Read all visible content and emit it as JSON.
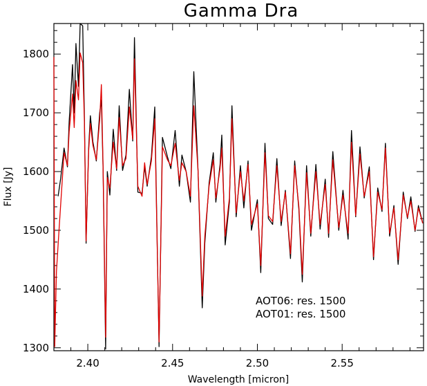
{
  "chart_data": {
    "type": "line",
    "title": "Gamma Dra",
    "xlabel": "Wavelength [micron]",
    "ylabel": "Flux [Jy]",
    "xlim": [
      2.38,
      2.598
    ],
    "ylim": [
      1295,
      1852
    ],
    "xticks": [
      2.4,
      2.45,
      2.5,
      2.55
    ],
    "xtick_labels": [
      "2.40",
      "2.45",
      "2.50",
      "2.55"
    ],
    "yticks": [
      1300,
      1400,
      1500,
      1600,
      1700,
      1800
    ],
    "ytick_labels": [
      "1300",
      "1400",
      "1500",
      "1600",
      "1700",
      "1800"
    ],
    "legend_placement": "lower-right",
    "grid": false,
    "series": [
      {
        "name": "AOT06: res. 1500",
        "color": "#000000",
        "x": [
          2.3825,
          2.384,
          2.386,
          2.388,
          2.389,
          2.391,
          2.392,
          2.393,
          2.3945,
          2.3955,
          2.397,
          2.398,
          2.399,
          2.4005,
          2.4015,
          2.403,
          2.405,
          2.407,
          2.408,
          2.409,
          2.4105,
          2.4115,
          2.413,
          2.415,
          2.417,
          2.4185,
          2.4205,
          2.4225,
          2.4245,
          2.4265,
          2.4275,
          2.4295,
          2.432,
          2.4335,
          2.435,
          2.4375,
          2.4395,
          2.442,
          2.444,
          2.447,
          2.449,
          2.4515,
          2.454,
          2.4555,
          2.458,
          2.4605,
          2.4625,
          2.465,
          2.4675,
          2.469,
          2.4715,
          2.474,
          2.4755,
          2.478,
          2.479,
          2.481,
          2.4835,
          2.485,
          2.4875,
          2.49,
          2.492,
          2.4945,
          2.4965,
          2.5,
          2.502,
          2.5045,
          2.5065,
          2.509,
          2.5115,
          2.514,
          2.5165,
          2.5195,
          2.522,
          2.5245,
          2.5265,
          2.529,
          2.5315,
          2.5345,
          2.537,
          2.54,
          2.542,
          2.5445,
          2.548,
          2.5505,
          2.5535,
          2.5555,
          2.558,
          2.5605,
          2.563,
          2.566,
          2.5685,
          2.571,
          2.5735,
          2.5755,
          2.578,
          2.5805,
          2.583,
          2.586,
          2.5885,
          2.5905,
          2.593,
          2.595,
          2.5975
        ],
        "y": [
          1558,
          1588,
          1640,
          1608,
          1685,
          1782,
          1700,
          1818,
          1745,
          1852,
          1848,
          1690,
          1478,
          1640,
          1695,
          1651,
          1618,
          1700,
          1722,
          1605,
          1298,
          1600,
          1560,
          1672,
          1602,
          1712,
          1602,
          1628,
          1740,
          1652,
          1828,
          1565,
          1563,
          1608,
          1575,
          1625,
          1710,
          1302,
          1658,
          1625,
          1605,
          1670,
          1575,
          1628,
          1600,
          1548,
          1770,
          1602,
          1368,
          1478,
          1580,
          1632,
          1548,
          1612,
          1662,
          1475,
          1548,
          1712,
          1523,
          1610,
          1538,
          1618,
          1500,
          1552,
          1428,
          1648,
          1520,
          1510,
          1622,
          1508,
          1568,
          1452,
          1618,
          1535,
          1412,
          1610,
          1490,
          1612,
          1502,
          1587,
          1488,
          1634,
          1500,
          1568,
          1485,
          1670,
          1523,
          1642,
          1555,
          1608,
          1450,
          1572,
          1532,
          1648,
          1490,
          1542,
          1442,
          1565,
          1520,
          1557,
          1498,
          1542,
          1512
        ]
      },
      {
        "name": "AOT01: res. 1500",
        "color": "#e00000",
        "x": [
          2.38,
          2.3805,
          2.3815,
          2.383,
          2.386,
          2.388,
          2.389,
          2.391,
          2.392,
          2.393,
          2.3945,
          2.3955,
          2.397,
          2.398,
          2.399,
          2.4005,
          2.4015,
          2.403,
          2.405,
          2.407,
          2.408,
          2.409,
          2.4105,
          2.4115,
          2.413,
          2.415,
          2.417,
          2.4185,
          2.4205,
          2.4225,
          2.4245,
          2.4265,
          2.4275,
          2.4295,
          2.432,
          2.4335,
          2.435,
          2.4375,
          2.4395,
          2.442,
          2.444,
          2.447,
          2.449,
          2.4515,
          2.454,
          2.4555,
          2.458,
          2.4605,
          2.4625,
          2.465,
          2.4675,
          2.469,
          2.4715,
          2.474,
          2.4755,
          2.478,
          2.479,
          2.481,
          2.4835,
          2.485,
          2.4875,
          2.49,
          2.492,
          2.4945,
          2.4965,
          2.5,
          2.502,
          2.5045,
          2.5065,
          2.509,
          2.5115,
          2.514,
          2.5165,
          2.5195,
          2.522,
          2.5245,
          2.5265,
          2.529,
          2.5315,
          2.5345,
          2.537,
          2.54,
          2.542,
          2.5445,
          2.548,
          2.5505,
          2.5535,
          2.5555,
          2.558,
          2.5605,
          2.563,
          2.566,
          2.5685,
          2.571,
          2.5735,
          2.5755,
          2.578,
          2.5805,
          2.583,
          2.586,
          2.5885,
          2.5905,
          2.593,
          2.595,
          2.5975
        ],
        "y": [
          1795,
          1302,
          1430,
          1500,
          1632,
          1610,
          1668,
          1732,
          1675,
          1755,
          1722,
          1802,
          1785,
          1682,
          1482,
          1635,
          1682,
          1645,
          1620,
          1688,
          1748,
          1608,
          1318,
          1590,
          1572,
          1650,
          1605,
          1692,
          1610,
          1622,
          1710,
          1655,
          1792,
          1575,
          1558,
          1615,
          1578,
          1618,
          1690,
          1310,
          1642,
          1620,
          1610,
          1648,
          1585,
          1615,
          1600,
          1558,
          1712,
          1602,
          1388,
          1490,
          1575,
          1620,
          1555,
          1605,
          1640,
          1490,
          1555,
          1690,
          1530,
          1600,
          1550,
          1612,
          1510,
          1545,
          1440,
          1632,
          1525,
          1515,
          1610,
          1515,
          1565,
          1460,
          1610,
          1540,
          1425,
          1598,
          1495,
          1600,
          1510,
          1578,
          1495,
          1620,
          1505,
          1560,
          1495,
          1650,
          1525,
          1630,
          1558,
          1600,
          1455,
          1565,
          1535,
          1640,
          1495,
          1538,
          1450,
          1560,
          1522,
          1550,
          1500,
          1538,
          1512
        ]
      }
    ]
  }
}
